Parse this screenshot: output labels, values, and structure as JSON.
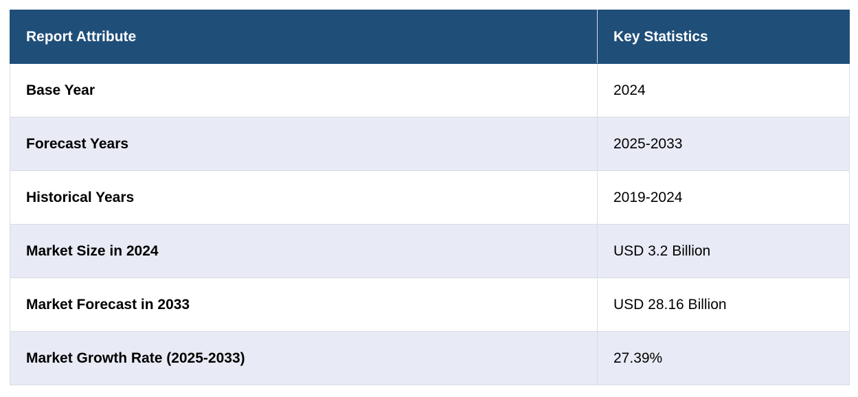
{
  "table": {
    "headers": [
      "Report Attribute",
      "Key Statistics"
    ],
    "rows": [
      {
        "attribute": "Base Year",
        "value": "2024"
      },
      {
        "attribute": "Forecast Years",
        "value": "2025-2033"
      },
      {
        "attribute": "Historical Years",
        "value": "2019-2024"
      },
      {
        "attribute": "Market Size in 2024",
        "value": "USD 3.2 Billion"
      },
      {
        "attribute": "Market Forecast in 2033",
        "value": "USD 28.16 Billion"
      },
      {
        "attribute": "Market Growth Rate (2025-2033)",
        "value": "27.39%"
      }
    ]
  },
  "colors": {
    "header_background": "#1f4e79",
    "header_text": "#ffffff",
    "row_alt_background": "#e8eaf5",
    "row_background": "#ffffff",
    "border": "#d8dde6"
  }
}
